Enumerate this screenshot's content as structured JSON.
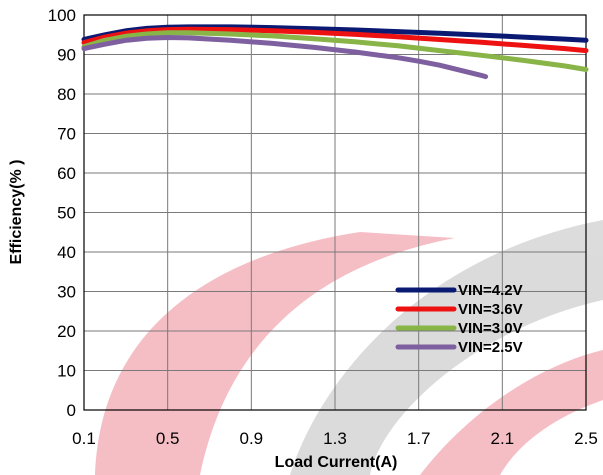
{
  "chart_data": {
    "type": "line",
    "title": "",
    "xlabel": "Load Current(A)",
    "ylabel": "Efficiency(% )",
    "xlim": [
      0.1,
      2.5
    ],
    "ylim": [
      0,
      100
    ],
    "xticks": [
      "0.1",
      "0.5",
      "0.9",
      "1.3",
      "1.7",
      "2.1",
      "2.5"
    ],
    "yticks": [
      "0",
      "10",
      "20",
      "30",
      "40",
      "50",
      "60",
      "70",
      "80",
      "90",
      "100"
    ],
    "grid": true,
    "legend_position": "bottom-right",
    "series": [
      {
        "name": "VIN=4.2V",
        "color": "#0a1a72",
        "x": [
          0.1,
          0.2,
          0.3,
          0.4,
          0.5,
          0.6,
          0.8,
          1.0,
          1.2,
          1.4,
          1.6,
          1.8,
          2.0,
          2.2,
          2.4,
          2.5
        ],
        "y": [
          93.8,
          95.0,
          96.0,
          96.6,
          96.9,
          97.0,
          97.0,
          96.8,
          96.5,
          96.2,
          95.8,
          95.4,
          94.9,
          94.4,
          93.9,
          93.6
        ]
      },
      {
        "name": "VIN=3.6V",
        "color": "#ee1111",
        "x": [
          0.1,
          0.2,
          0.3,
          0.4,
          0.5,
          0.6,
          0.8,
          1.0,
          1.2,
          1.4,
          1.6,
          1.8,
          2.0,
          2.2,
          2.4,
          2.5
        ],
        "y": [
          93.0,
          94.4,
          95.4,
          96.0,
          96.3,
          96.4,
          96.3,
          96.0,
          95.6,
          95.1,
          94.5,
          93.8,
          93.1,
          92.3,
          91.5,
          91.0
        ]
      },
      {
        "name": "VIN=3.0V",
        "color": "#88b448",
        "x": [
          0.1,
          0.2,
          0.3,
          0.4,
          0.5,
          0.6,
          0.8,
          1.0,
          1.2,
          1.4,
          1.6,
          1.8,
          2.0,
          2.2,
          2.4,
          2.5
        ],
        "y": [
          92.0,
          93.6,
          94.6,
          95.2,
          95.5,
          95.5,
          95.2,
          94.7,
          94.0,
          93.2,
          92.2,
          91.0,
          89.8,
          88.5,
          87.1,
          86.2
        ]
      },
      {
        "name": "VIN=2.5V",
        "color": "#7e5fa0",
        "x": [
          0.1,
          0.2,
          0.3,
          0.4,
          0.5,
          0.6,
          0.8,
          1.0,
          1.2,
          1.4,
          1.6,
          1.7,
          1.8,
          1.9,
          2.0,
          2.02
        ],
        "y": [
          91.5,
          92.6,
          93.6,
          94.1,
          94.3,
          94.2,
          93.6,
          92.8,
          91.8,
          90.6,
          89.2,
          88.3,
          87.3,
          86.0,
          84.7,
          84.4
        ]
      }
    ]
  }
}
